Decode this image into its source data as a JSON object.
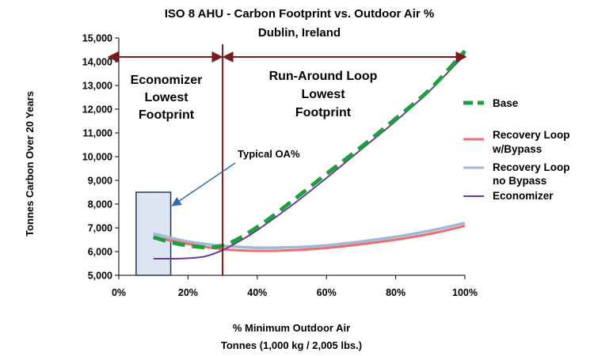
{
  "chart_data": {
    "type": "line",
    "title": "ISO 8 AHU - Carbon Footprint vs. Outdoor Air %",
    "subtitle": "Dublin, Ireland",
    "xlabel": "% Minimum Outdoor Air",
    "xlabel2": "Tonnes (1,000 kg / 2,005 lbs.)",
    "ylabel": "Tonnes Carbon Over 20 Years",
    "xlim": [
      0,
      100
    ],
    "ylim": [
      5000,
      15000
    ],
    "x_ticks": [
      "0%",
      "20%",
      "40%",
      "60%",
      "80%",
      "100%"
    ],
    "y_ticks": [
      "5,000",
      "6,000",
      "7,000",
      "8,000",
      "9,000",
      "10,000",
      "11,000",
      "12,000",
      "13,000",
      "14,000",
      "15,000"
    ],
    "grid": false,
    "legend_position": "right",
    "series": [
      {
        "name": "Base",
        "color": "#1e9e3e",
        "style": "dashed",
        "x": [
          10,
          20,
          30,
          40,
          50,
          60,
          70,
          80,
          90,
          100
        ],
        "y": [
          6600,
          6250,
          6250,
          7030,
          8120,
          9270,
          10400,
          11600,
          12850,
          14450
        ]
      },
      {
        "name": "Recovery Loop w/Bypass",
        "color": "#f26b6b",
        "style": "solid",
        "x": [
          10,
          20,
          30,
          40,
          50,
          60,
          70,
          80,
          90,
          100
        ],
        "y": [
          6620,
          6320,
          6100,
          6030,
          6060,
          6150,
          6310,
          6500,
          6750,
          7080
        ]
      },
      {
        "name": "Recovery Loop no Bypass",
        "color": "#9fb8d6",
        "style": "solid",
        "x": [
          10,
          20,
          30,
          40,
          50,
          60,
          70,
          80,
          90,
          100
        ],
        "y": [
          6750,
          6420,
          6240,
          6160,
          6180,
          6260,
          6420,
          6620,
          6880,
          7200
        ]
      },
      {
        "name": "Economizer",
        "color": "#6a3d9a",
        "style": "solid",
        "x": [
          10,
          15,
          20,
          25,
          30,
          35,
          40,
          50,
          60,
          70,
          80,
          90,
          100
        ],
        "y": [
          5700,
          5700,
          5720,
          5800,
          6060,
          6450,
          6900,
          7950,
          9100,
          10300,
          11500,
          12800,
          14300
        ]
      }
    ],
    "divider_x": 30,
    "arrow_y": 14200,
    "regions": [
      {
        "lines": [
          "Economizer",
          "Lowest",
          "Footprint"
        ]
      },
      {
        "lines": [
          "Run-Around Loop",
          "Lowest",
          "Footprint"
        ]
      }
    ],
    "annotation": {
      "text": "Typical OA%",
      "box": {
        "x0": 5,
        "x1": 15,
        "y0": 5000,
        "y1": 8500
      }
    }
  }
}
